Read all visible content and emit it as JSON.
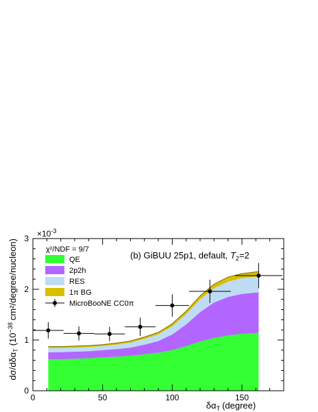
{
  "chart_data": {
    "type": "area",
    "xlabel": "δα",
    "xlabel_sub": "T",
    "xlabel_unit": "(degree)",
    "ylabel": "dσ/dδα_T (10^-38 cm²/degree/nucleon)",
    "ylabel_pre": "dσ/dδα",
    "ylabel_sub": "T",
    "ylabel_mid": "(10",
    "ylabel_exp": "−38",
    "ylabel_post": "cm²/degree/nucleon)",
    "y_multiplier": "×10",
    "y_multiplier_exp": "-3",
    "xlim": [
      0,
      180
    ],
    "ylim": [
      0,
      0.003
    ],
    "x_ticks": [
      0,
      50,
      100,
      150
    ],
    "x_tick_labels": [
      "0",
      "50",
      "100",
      "150"
    ],
    "y_ticks": [
      0,
      0.001,
      0.002,
      0.003
    ],
    "y_tick_labels": [
      "0",
      "1",
      "2",
      "3"
    ],
    "grid": false,
    "legend_position": "top-left",
    "annotation": {
      "main": "(b) GiBUU 25p1, default, ",
      "var": "T",
      "sub": "2",
      "tail": "=2"
    },
    "chi2_label": "χ²/NDF = 9/7",
    "x": [
      11,
      20,
      30,
      40,
      50,
      60,
      70,
      80,
      90,
      100,
      110,
      120,
      130,
      140,
      150,
      162
    ],
    "stacked_series": [
      {
        "name": "QE",
        "color": "#33ff33",
        "values": [
          0.00062,
          0.00062,
          0.00063,
          0.00064,
          0.00066,
          0.00067,
          0.00069,
          0.00072,
          0.00075,
          0.0008,
          0.00088,
          0.00097,
          0.00104,
          0.00109,
          0.00112,
          0.00114
        ]
      },
      {
        "name": "2p2h",
        "color": "#b266ff",
        "values": [
          0.00014,
          0.00014,
          0.00014,
          0.00014,
          0.00014,
          0.00015,
          0.00016,
          0.00019,
          0.00023,
          0.00031,
          0.00043,
          0.00058,
          0.0007,
          0.00076,
          0.00079,
          0.0008
        ]
      },
      {
        "name": "RES",
        "color": "#bfdcf5",
        "values": [
          8e-05,
          8e-05,
          8e-05,
          8e-05,
          8e-05,
          9e-05,
          0.0001,
          0.00011,
          0.00013,
          0.00016,
          0.0002,
          0.00025,
          0.00028,
          0.0003,
          0.00031,
          0.00031
        ]
      },
      {
        "name": "1π BG",
        "color": "#d8c000",
        "values": [
          3e-05,
          3e-05,
          3e-05,
          3e-05,
          3e-05,
          3e-05,
          3e-05,
          4e-05,
          4e-05,
          5e-05,
          6e-05,
          7e-05,
          8e-05,
          9e-05,
          9e-05,
          0.0001
        ]
      }
    ],
    "data_series": {
      "name": "MicroBooNE CC0π",
      "points": [
        {
          "x": 11,
          "y": 0.00119,
          "xerr": 11,
          "yerr": 0.00016
        },
        {
          "x": 33,
          "y": 0.00113,
          "xerr": 11,
          "yerr": 0.00014
        },
        {
          "x": 55,
          "y": 0.00112,
          "xerr": 11,
          "yerr": 0.00014
        },
        {
          "x": 77,
          "y": 0.00126,
          "xerr": 11,
          "yerr": 0.00018
        },
        {
          "x": 100,
          "y": 0.00168,
          "xerr": 12,
          "yerr": 0.00022
        },
        {
          "x": 127,
          "y": 0.00196,
          "xerr": 15,
          "yerr": 0.00023
        },
        {
          "x": 162,
          "y": 0.00227,
          "xerr": 17,
          "yerr": 0.00025
        }
      ]
    }
  }
}
